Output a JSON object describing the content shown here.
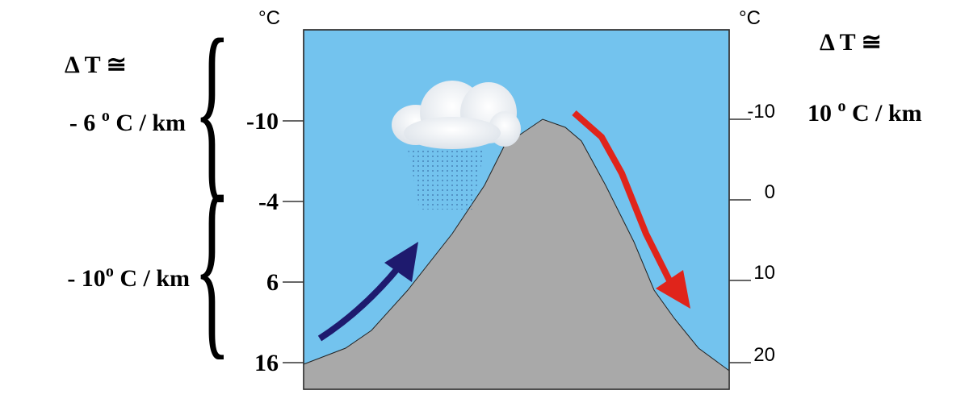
{
  "left_axis": {
    "unit": "°C",
    "ticks": [
      "-10",
      "-4",
      "6",
      "16"
    ]
  },
  "right_axis": {
    "unit": "°C",
    "ticks": [
      "-10",
      "0",
      "10",
      "20"
    ]
  },
  "left_annotations": {
    "delta": "Δ T ≅",
    "upper_rate": {
      "pre": "- 6 ",
      "sup": "o",
      "post": " C / km"
    },
    "lower_rate": {
      "pre": "- 10",
      "sup": "o",
      "post": " C / km"
    }
  },
  "right_annotations": {
    "delta": "Δ T ≅",
    "rate": {
      "pre": "10 ",
      "sup": "o",
      "post": " C / km"
    }
  }
}
